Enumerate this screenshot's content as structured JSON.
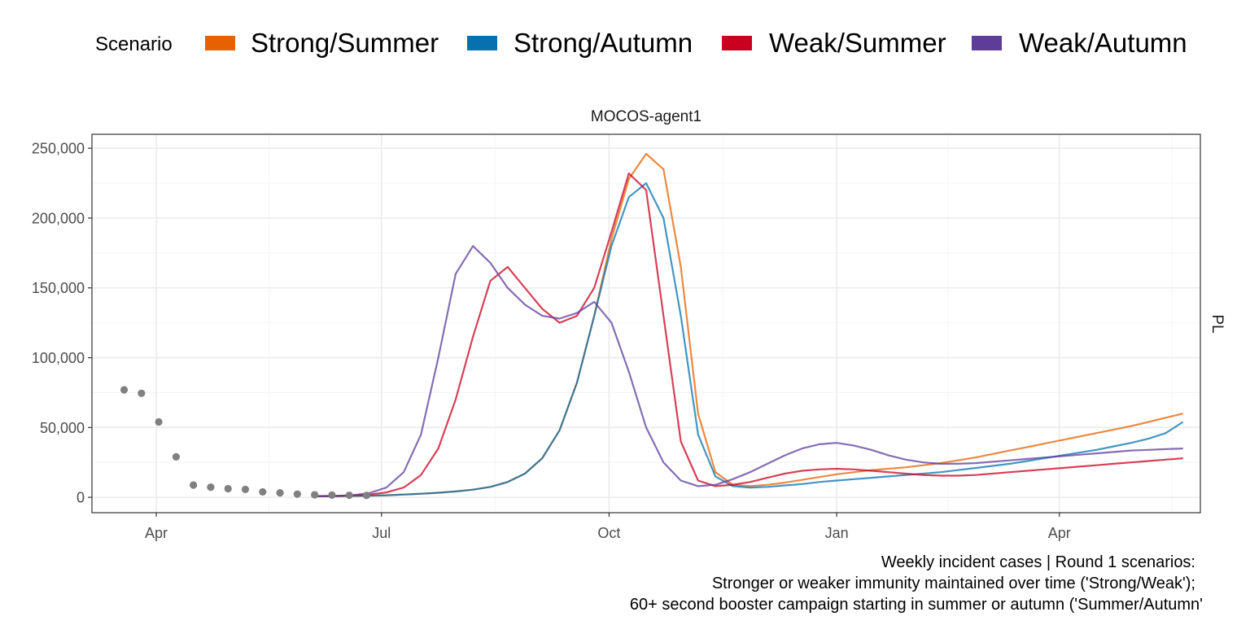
{
  "chart_data": {
    "type": "line",
    "facet_title": "MOCOS-agent1",
    "strip_right": "PL",
    "legend": {
      "title": "Scenario",
      "position": "top",
      "entries": [
        {
          "label": "Strong/Summer",
          "color": "#E66101"
        },
        {
          "label": "Strong/Autumn",
          "color": "#0571B0"
        },
        {
          "label": "Weak/Summer",
          "color": "#CA0020"
        },
        {
          "label": "Weak/Autumn",
          "color": "#5E3C99"
        }
      ]
    },
    "y_axis": {
      "range": [
        -11000,
        260000
      ],
      "ticks": [
        0,
        50000,
        100000,
        150000,
        200000,
        250000
      ],
      "tick_labels": [
        "0",
        "50,000",
        "100,000",
        "150,000",
        "200,000",
        "250,000"
      ],
      "grid": true
    },
    "x_axis": {
      "range": [
        "2022-03-06",
        "2023-05-28"
      ],
      "ticks": [
        "2022-04-01",
        "2022-07-01",
        "2022-10-01",
        "2023-01-01",
        "2023-04-01"
      ],
      "tick_labels": [
        "Apr",
        "Jul",
        "Oct",
        "Jan",
        "Apr"
      ],
      "grid": true
    },
    "observed": {
      "color": "#808080",
      "points": [
        {
          "x": "2022-03-19",
          "y": 77000
        },
        {
          "x": "2022-03-26",
          "y": 74500
        },
        {
          "x": "2022-04-02",
          "y": 54000
        },
        {
          "x": "2022-04-09",
          "y": 29000
        },
        {
          "x": "2022-04-16",
          "y": 8800
        },
        {
          "x": "2022-04-23",
          "y": 7300
        },
        {
          "x": "2022-04-30",
          "y": 6200
        },
        {
          "x": "2022-05-07",
          "y": 5700
        },
        {
          "x": "2022-05-14",
          "y": 3900
        },
        {
          "x": "2022-05-21",
          "y": 3200
        },
        {
          "x": "2022-05-28",
          "y": 2300
        },
        {
          "x": "2022-06-04",
          "y": 1800
        },
        {
          "x": "2022-06-11",
          "y": 1600
        },
        {
          "x": "2022-06-18",
          "y": 1500
        },
        {
          "x": "2022-06-25",
          "y": 1400
        }
      ]
    },
    "projection_dates": [
      "2022-06-05",
      "2022-06-12",
      "2022-06-19",
      "2022-06-26",
      "2022-07-03",
      "2022-07-10",
      "2022-07-17",
      "2022-07-24",
      "2022-07-31",
      "2022-08-07",
      "2022-08-14",
      "2022-08-21",
      "2022-08-28",
      "2022-09-04",
      "2022-09-11",
      "2022-09-18",
      "2022-09-25",
      "2022-10-02",
      "2022-10-09",
      "2022-10-16",
      "2022-10-23",
      "2022-10-30",
      "2022-11-06",
      "2022-11-13",
      "2022-11-20",
      "2022-11-27",
      "2022-12-04",
      "2022-12-11",
      "2022-12-18",
      "2022-12-25",
      "2023-01-01",
      "2023-01-08",
      "2023-01-15",
      "2023-01-22",
      "2023-01-29",
      "2023-02-05",
      "2023-02-12",
      "2023-02-19",
      "2023-02-26",
      "2023-03-05",
      "2023-03-12",
      "2023-03-19",
      "2023-03-26",
      "2023-04-02",
      "2023-04-09",
      "2023-04-16",
      "2023-04-23",
      "2023-04-30",
      "2023-05-07",
      "2023-05-14",
      "2023-05-21"
    ],
    "series": [
      {
        "name": "Strong/Summer",
        "values": [
          800,
          800,
          1000,
          1200,
          1500,
          2000,
          2600,
          3300,
          4200,
          5500,
          7500,
          11000,
          17000,
          28000,
          48000,
          82000,
          130000,
          185000,
          228000,
          246000,
          235000,
          165000,
          60000,
          18000,
          9000,
          8000,
          9000,
          10500,
          12500,
          14500,
          16500,
          18000,
          19500,
          20500,
          21500,
          23000,
          24500,
          26500,
          28500,
          31000,
          33500,
          36000,
          38500,
          41000,
          43500,
          46000,
          48500,
          51000,
          54000,
          57000,
          60000
        ]
      },
      {
        "name": "Strong/Autumn",
        "values": [
          800,
          800,
          1000,
          1200,
          1500,
          2000,
          2600,
          3300,
          4200,
          5500,
          7500,
          11000,
          17000,
          28000,
          48000,
          82000,
          130000,
          180000,
          215000,
          225000,
          200000,
          130000,
          45000,
          15000,
          8000,
          7000,
          7500,
          8500,
          9500,
          11000,
          12000,
          13000,
          14000,
          15000,
          16000,
          17000,
          18000,
          19500,
          21000,
          22500,
          24000,
          26000,
          28000,
          30000,
          32000,
          34000,
          36500,
          39000,
          42000,
          46000,
          54000
        ]
      },
      {
        "name": "Weak/Summer",
        "values": [
          900,
          1000,
          1300,
          2000,
          3500,
          7000,
          16000,
          35000,
          70000,
          115000,
          155000,
          165000,
          150000,
          135000,
          125000,
          130000,
          150000,
          190000,
          232000,
          220000,
          130000,
          40000,
          12000,
          8000,
          9000,
          11000,
          14000,
          17000,
          19000,
          20000,
          20500,
          20000,
          19000,
          18000,
          17000,
          16000,
          15500,
          15500,
          16000,
          17000,
          18000,
          19000,
          20000,
          21000,
          22000,
          23000,
          24000,
          25000,
          26000,
          27000,
          28000
        ]
      },
      {
        "name": "Weak/Autumn",
        "values": [
          900,
          1000,
          1500,
          3000,
          7000,
          18000,
          45000,
          100000,
          160000,
          180000,
          168000,
          150000,
          138000,
          130000,
          128000,
          132000,
          140000,
          125000,
          90000,
          50000,
          25000,
          12000,
          8000,
          9000,
          13000,
          18000,
          24000,
          30000,
          35000,
          38000,
          39000,
          37000,
          34000,
          30000,
          27000,
          25000,
          24000,
          24000,
          24500,
          25500,
          26500,
          27500,
          28500,
          29500,
          30500,
          31500,
          32500,
          33500,
          34000,
          34500,
          35000
        ]
      }
    ]
  },
  "caption": {
    "lines": [
      "Weekly incident cases | Round 1 scenarios:",
      "Stronger or weaker immunity maintained over time ('Strong/Weak');",
      "60+ second booster campaign starting in summer or autumn ('Summer/Autumn'"
    ]
  }
}
